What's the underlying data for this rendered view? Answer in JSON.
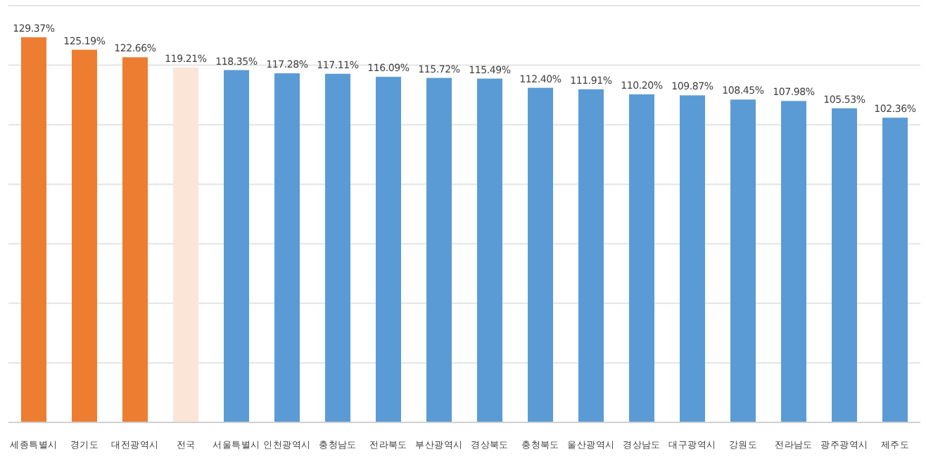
{
  "chart_data": {
    "type": "bar",
    "categories": [
      "세종특별시",
      "경기도",
      "대전광역시",
      "전국",
      "서울특별시",
      "인천광역시",
      "충청남도",
      "전라북도",
      "부산광역시",
      "경상북도",
      "충청북도",
      "울산광역시",
      "경상남도",
      "대구광역시",
      "강원도",
      "전라남도",
      "광주광역시",
      "제주도"
    ],
    "values": [
      129.37,
      125.19,
      122.66,
      119.21,
      118.35,
      117.28,
      117.11,
      116.09,
      115.72,
      115.49,
      112.4,
      111.91,
      110.2,
      109.87,
      108.45,
      107.98,
      105.53,
      102.36
    ],
    "colors": [
      "#ed7d31",
      "#ed7d31",
      "#ed7d31",
      "#fbe5d6",
      "#5b9bd5",
      "#5b9bd5",
      "#5b9bd5",
      "#5b9bd5",
      "#5b9bd5",
      "#5b9bd5",
      "#5b9bd5",
      "#5b9bd5",
      "#5b9bd5",
      "#5b9bd5",
      "#5b9bd5",
      "#5b9bd5",
      "#5b9bd5",
      "#5b9bd5"
    ],
    "value_labels": [
      "129.37%",
      "125.19%",
      "122.66%",
      "119.21%",
      "118.35%",
      "117.28%",
      "117.11%",
      "116.09%",
      "115.72%",
      "115.49%",
      "112.40%",
      "111.91%",
      "110.20%",
      "109.87%",
      "108.45%",
      "107.98%",
      "105.53%",
      "102.36%"
    ],
    "ylim": [
      0,
      140
    ],
    "yticks": [
      {
        "value": 0,
        "label": null
      },
      {
        "value": 20,
        "label": null
      },
      {
        "value": 40,
        "label": null
      },
      {
        "value": 60,
        "label": null
      },
      {
        "value": 80,
        "label": null
      },
      {
        "value": 100,
        "label": null
      },
      {
        "value": 120,
        "label": null
      },
      {
        "value": 140,
        "label": null
      }
    ],
    "grid": "y"
  }
}
